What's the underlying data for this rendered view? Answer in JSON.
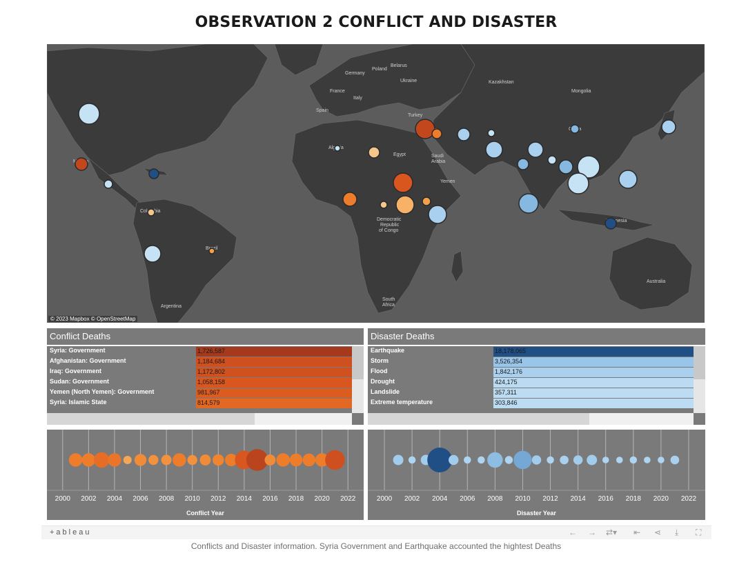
{
  "title": "OBSERVATION 2 CONFLICT AND DISASTER",
  "map": {
    "attribution": "© 2023 Mapbox  © OpenStreetMap",
    "labels": [
      "Germany",
      "Poland",
      "Belarus",
      "Ukraine",
      "France",
      "Italy",
      "Spain",
      "Kazakhstan",
      "Mongolia",
      "Turkey",
      "Iraq",
      "Algeria",
      "Egypt",
      "Saudi Arabia",
      "Yemen",
      "China",
      "Democratic Republic of Congo",
      "Colombia",
      "Brazil",
      "Mexico",
      "South Africa",
      "Argentina",
      "Indonesia",
      "Australia"
    ]
  },
  "conflict_panel": {
    "title": "Conflict Deaths",
    "axis_label": "Conflict Year"
  },
  "disaster_panel": {
    "title": "Disaster Deaths",
    "axis_label": "Disaster Year"
  },
  "toolbar": {
    "logo": "+ableau",
    "icons": [
      "undo-icon",
      "redo-icon",
      "revert-icon",
      "reset-icon",
      "share-icon",
      "download-icon",
      "fullscreen-icon"
    ]
  },
  "caption": "Conflicts and Disaster information. Syria Government and Earthquake accounted the hightest Deaths",
  "colors": {
    "conflict_scale": [
      "#f5c68c",
      "#f4a04a",
      "#ee7d2b",
      "#d9561e",
      "#a6381c"
    ],
    "disaster_scale": [
      "#c6e2f5",
      "#a9d1ef",
      "#86b8e0",
      "#5b8fc5",
      "#1f4f85"
    ],
    "map_bg": "#5c5c5c",
    "land": "#3c3c3c"
  },
  "chart_data": [
    {
      "type": "bar",
      "title": "Conflict Deaths",
      "categories": [
        "Syria: Government",
        "Afghanistan: Government",
        "Iraq: Government",
        "Sudan: Government",
        "Yemen (North Yemen): Government",
        "Syria: Islamic State"
      ],
      "values": [
        1726587,
        1184684,
        1172802,
        1058158,
        981967,
        814579
      ],
      "display_values": [
        "1,726,587",
        "1,184,684",
        "1,172,802",
        "1,058,158",
        "981,967",
        "814,579"
      ]
    },
    {
      "type": "bar",
      "title": "Disaster Deaths",
      "categories": [
        "Earthquake",
        "Storm",
        "Flood",
        "Drought",
        "Landslide",
        "Extreme temperature"
      ],
      "values": [
        18178065,
        3526354,
        1842176,
        424175,
        357311,
        303846
      ],
      "display_values": [
        "18,178,065",
        "3,526,354",
        "1,842,176",
        "424,175",
        "357,311",
        "303,846"
      ]
    },
    {
      "type": "scatter",
      "title": "",
      "xlabel": "Conflict Year",
      "xlim": [
        1999,
        2023
      ],
      "xticks": [
        2000,
        2002,
        2004,
        2006,
        2008,
        2010,
        2012,
        2014,
        2016,
        2018,
        2020,
        2022
      ],
      "x": [
        2001,
        2002,
        2003,
        2004,
        2005,
        2006,
        2007,
        2008,
        2009,
        2010,
        2011,
        2012,
        2013,
        2014,
        2015,
        2016,
        2017,
        2018,
        2019,
        2020,
        2021
      ],
      "size": [
        0.45,
        0.45,
        0.55,
        0.45,
        0.2,
        0.38,
        0.28,
        0.3,
        0.45,
        0.28,
        0.33,
        0.35,
        0.4,
        0.7,
        0.85,
        0.33,
        0.45,
        0.42,
        0.42,
        0.45,
        0.75
      ],
      "color": [
        0.5,
        0.5,
        0.6,
        0.55,
        0.2,
        0.4,
        0.35,
        0.35,
        0.5,
        0.35,
        0.4,
        0.45,
        0.5,
        0.75,
        0.9,
        0.4,
        0.5,
        0.5,
        0.5,
        0.5,
        0.8
      ]
    },
    {
      "type": "scatter",
      "title": "",
      "xlabel": "Disaster Year",
      "xlim": [
        1999,
        2023
      ],
      "xticks": [
        2000,
        2002,
        2004,
        2006,
        2008,
        2010,
        2012,
        2014,
        2016,
        2018,
        2020,
        2022
      ],
      "x": [
        2001,
        2002,
        2003,
        2004,
        2005,
        2006,
        2007,
        2008,
        2009,
        2010,
        2011,
        2012,
        2013,
        2014,
        2015,
        2016,
        2017,
        2018,
        2019,
        2020,
        2021
      ],
      "size": [
        0.3,
        0.15,
        0.3,
        1.0,
        0.28,
        0.15,
        0.15,
        0.55,
        0.18,
        0.68,
        0.25,
        0.15,
        0.22,
        0.25,
        0.3,
        0.12,
        0.12,
        0.15,
        0.12,
        0.12,
        0.22
      ],
      "color": [
        0.3,
        0.2,
        0.3,
        1.0,
        0.3,
        0.2,
        0.2,
        0.45,
        0.2,
        0.6,
        0.3,
        0.2,
        0.25,
        0.3,
        0.3,
        0.2,
        0.2,
        0.2,
        0.2,
        0.2,
        0.25
      ]
    }
  ]
}
